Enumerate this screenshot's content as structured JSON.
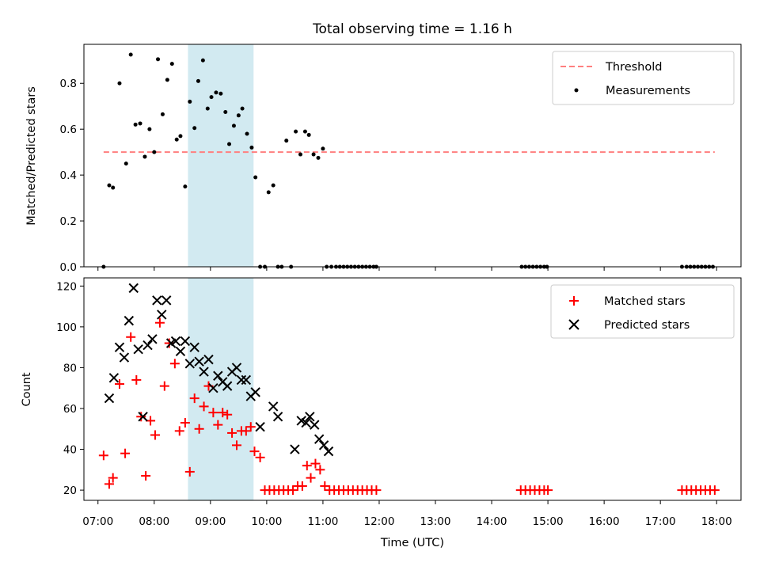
{
  "chart_data": [
    {
      "type": "scatter",
      "title": "Total observing time = 1.16 h",
      "ylabel": "Matched/Predicted stars",
      "xlabel": "",
      "xlim": [
        "06:45",
        "18:26"
      ],
      "ylim": [
        0,
        0.97
      ],
      "yticks": [
        0.0,
        0.2,
        0.4,
        0.6,
        0.8
      ],
      "ytick_labels": [
        "0.0",
        "0.2",
        "0.4",
        "0.6",
        "0.8"
      ],
      "grid": false,
      "legend_position": "top-right",
      "shaded_interval": {
        "start": "08:36",
        "end": "09:46",
        "color": "#add8e6"
      },
      "threshold_color": "#ff7f7f",
      "measurement_color": "#000000",
      "series": [
        {
          "name": "Threshold",
          "kind": "dashed-line",
          "x": [
            "07:06",
            "17:58"
          ],
          "y": [
            0.5,
            0.5
          ]
        },
        {
          "name": "Measurements",
          "kind": "scatter",
          "x": [
            "07:06",
            "07:12",
            "07:16",
            "07:23",
            "07:30",
            "07:35",
            "07:40",
            "07:45",
            "07:50",
            "07:55",
            "08:00",
            "08:04",
            "08:09",
            "08:14",
            "08:19",
            "08:24",
            "08:28",
            "08:33",
            "08:38",
            "08:43",
            "08:47",
            "08:52",
            "08:57",
            "09:01",
            "09:06",
            "09:11",
            "09:16",
            "09:20",
            "09:25",
            "09:30",
            "09:34",
            "09:39",
            "09:44",
            "09:48",
            "09:53",
            "09:58",
            "10:02",
            "10:07",
            "10:12",
            "10:16",
            "10:21",
            "10:26",
            "10:31",
            "10:36",
            "10:41",
            "10:45",
            "10:50",
            "10:55",
            "11:00",
            "11:04",
            "11:09",
            "11:14",
            "11:18",
            "11:22",
            "11:26",
            "11:30",
            "11:34",
            "11:38",
            "11:42",
            "11:46",
            "11:50",
            "11:54",
            "11:57",
            "14:32",
            "14:36",
            "14:40",
            "14:44",
            "14:48",
            "14:52",
            "14:56",
            "14:59",
            "17:23",
            "17:28",
            "17:32",
            "17:36",
            "17:40",
            "17:44",
            "17:48",
            "17:52",
            "17:56"
          ],
          "y": [
            0.0,
            0.355,
            0.345,
            0.8,
            0.45,
            0.925,
            0.62,
            0.625,
            0.48,
            0.6,
            0.5,
            0.905,
            0.665,
            0.815,
            0.885,
            0.555,
            0.57,
            0.35,
            0.72,
            0.605,
            0.81,
            0.9,
            0.69,
            0.74,
            0.76,
            0.755,
            0.675,
            0.535,
            0.615,
            0.66,
            0.69,
            0.58,
            0.52,
            0.39,
            0.0,
            0.0,
            0.325,
            0.355,
            0.0,
            0.0,
            0.55,
            0.0,
            0.59,
            0.49,
            0.59,
            0.575,
            0.49,
            0.475,
            0.515,
            0.0,
            0.0,
            0.0,
            0.0,
            0.0,
            0.0,
            0.0,
            0.0,
            0.0,
            0.0,
            0.0,
            0.0,
            0.0,
            0.0,
            0.0,
            0.0,
            0.0,
            0.0,
            0.0,
            0.0,
            0.0,
            0.0,
            0.0,
            0.0,
            0.0,
            0.0,
            0.0,
            0.0,
            0.0,
            0.0,
            0.0
          ]
        }
      ]
    },
    {
      "type": "scatter",
      "title": "",
      "ylabel": "Count",
      "xlabel": "Time (UTC)",
      "xlim": [
        "06:45",
        "18:26"
      ],
      "ylim": [
        15,
        124
      ],
      "yticks": [
        20,
        40,
        60,
        80,
        100,
        120
      ],
      "ytick_labels": [
        "20",
        "40",
        "60",
        "80",
        "100",
        "120"
      ],
      "xticks": [
        "07:00",
        "08:00",
        "09:00",
        "10:00",
        "11:00",
        "12:00",
        "13:00",
        "14:00",
        "15:00",
        "16:00",
        "17:00",
        "18:00"
      ],
      "xtick_labels": [
        "07:00",
        "08:00",
        "09:00",
        "10:00",
        "11:00",
        "12:00",
        "13:00",
        "14:00",
        "15:00",
        "16:00",
        "17:00",
        "18:00"
      ],
      "grid": false,
      "legend_position": "top-right",
      "shaded_interval": {
        "start": "08:36",
        "end": "09:46",
        "color": "#add8e6"
      },
      "matched_color": "#ff0000",
      "predicted_color": "#000000",
      "series": [
        {
          "name": "Matched stars",
          "marker": "plus",
          "x": [
            "07:06",
            "07:12",
            "07:16",
            "07:23",
            "07:29",
            "07:35",
            "07:41",
            "07:46",
            "07:51",
            "07:56",
            "08:01",
            "08:06",
            "08:11",
            "08:16",
            "08:22",
            "08:27",
            "08:33",
            "08:38",
            "08:43",
            "08:48",
            "08:53",
            "08:58",
            "09:03",
            "09:08",
            "09:13",
            "09:18",
            "09:23",
            "09:28",
            "09:33",
            "09:38",
            "09:43",
            "09:47",
            "09:53",
            "09:58",
            "10:03",
            "10:08",
            "10:13",
            "10:18",
            "10:23",
            "10:28",
            "10:33",
            "10:38",
            "10:43",
            "10:47",
            "10:52",
            "10:57",
            "11:02",
            "11:07",
            "11:12",
            "11:17",
            "11:22",
            "11:27",
            "11:32",
            "11:37",
            "11:42",
            "11:47",
            "11:52",
            "11:57",
            "14:31",
            "14:36",
            "14:41",
            "14:46",
            "14:51",
            "14:56",
            "15:00",
            "17:23",
            "17:28",
            "17:33",
            "17:38",
            "17:43",
            "17:48",
            "17:53",
            "17:58"
          ],
          "y": [
            37,
            23,
            26,
            72,
            38,
            95,
            74,
            56,
            27,
            54,
            47,
            102,
            71,
            92,
            82,
            49,
            53,
            29,
            65,
            50,
            61,
            71,
            58,
            52,
            58,
            57,
            48,
            42,
            49,
            49,
            51,
            39,
            36,
            20,
            20,
            20,
            20,
            20,
            20,
            20,
            22,
            22,
            32,
            26,
            33,
            30,
            22,
            20,
            20,
            20,
            20,
            20,
            20,
            20,
            20,
            20,
            20,
            20,
            20,
            20,
            20,
            20,
            20,
            20,
            20,
            20,
            20,
            20,
            20,
            20,
            20,
            20,
            20
          ]
        },
        {
          "name": "Predicted stars",
          "marker": "x",
          "x": [
            "07:12",
            "07:17",
            "07:23",
            "07:28",
            "07:33",
            "07:38",
            "07:43",
            "07:48",
            "07:53",
            "07:58",
            "08:03",
            "08:08",
            "08:13",
            "08:18",
            "08:23",
            "08:28",
            "08:33",
            "08:38",
            "08:43",
            "08:48",
            "08:53",
            "08:58",
            "09:03",
            "09:08",
            "09:13",
            "09:18",
            "09:23",
            "09:28",
            "09:33",
            "09:38",
            "09:43",
            "09:48",
            "09:53",
            "10:07",
            "10:12",
            "10:30",
            "10:37",
            "10:42",
            "10:46",
            "10:51",
            "10:56",
            "11:01",
            "11:06"
          ],
          "y": [
            65,
            75,
            90,
            85,
            103,
            119,
            89,
            56,
            91,
            94,
            113,
            106,
            113,
            92,
            93,
            88,
            93,
            82,
            90,
            83,
            78,
            84,
            70,
            76,
            73,
            71,
            78,
            80,
            74,
            74,
            66,
            68,
            51,
            61,
            56,
            40,
            54,
            53,
            56,
            52,
            45,
            42,
            39
          ]
        }
      ]
    }
  ]
}
